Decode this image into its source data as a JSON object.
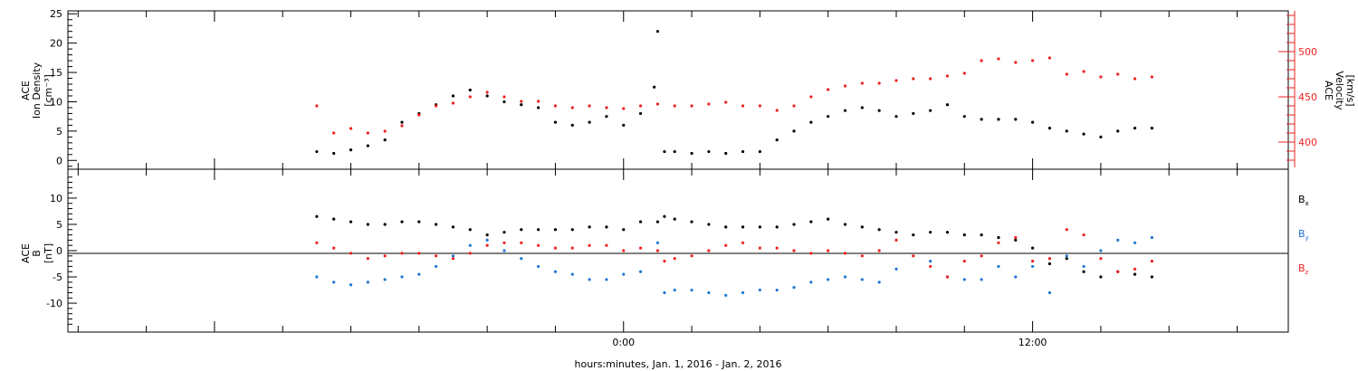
{
  "chart_data": [
    {
      "type": "scatter",
      "ylabel_left": [
        "ACE",
        "Ion Density",
        "[cm⁻³]"
      ],
      "ylabel_right": [
        "ACE",
        "Velocity",
        "[km/s]"
      ],
      "ylim_left": [
        -1.5,
        25.5
      ],
      "ylim_right": [
        370,
        545
      ],
      "yticks_left": [
        "0",
        "5",
        "10",
        "15",
        "20",
        "25"
      ],
      "yticks_right": [
        "400",
        "450",
        "500"
      ],
      "series": [
        {
          "axis": "left",
          "color": "#000000",
          "x": [
            -9.0,
            -8.5,
            -8.0,
            -7.5,
            -7.0,
            -6.5,
            -6.0,
            -5.5,
            -5.0,
            -4.5,
            -4.0,
            -3.5,
            -3.0,
            -2.5,
            -2.0,
            -1.5,
            -1.0,
            -0.5,
            0.0,
            0.5,
            0.9,
            1.0,
            1.2,
            1.5,
            2.0,
            2.5,
            3.0,
            3.5,
            4.0,
            4.5,
            5.0,
            5.5,
            6.0,
            6.5,
            7.0,
            7.5,
            8.0,
            8.5,
            9.0,
            9.5,
            10.0,
            10.5,
            11.0,
            11.5,
            12.0,
            12.5,
            13.0,
            13.5,
            14.0,
            14.5,
            15.0,
            15.5
          ],
          "y": [
            1.5,
            1.2,
            1.8,
            2.5,
            3.5,
            6.5,
            8.0,
            9.5,
            11.0,
            12.0,
            11.0,
            10.0,
            9.5,
            9.0,
            6.5,
            6.0,
            6.5,
            7.5,
            6.0,
            8.0,
            12.5,
            22.0,
            1.5,
            1.5,
            1.2,
            1.5,
            1.2,
            1.5,
            1.5,
            3.5,
            5.0,
            6.5,
            7.5,
            8.5,
            9.0,
            8.5,
            7.5,
            8.0,
            8.5,
            9.5,
            7.5,
            7.0,
            7.0,
            7.0,
            6.5,
            5.5,
            5.0,
            4.5,
            4.0,
            5.0,
            5.5,
            5.5
          ]
        },
        {
          "axis": "right",
          "color": "#ee2222",
          "x": [
            -9.0,
            -8.5,
            -8.0,
            -7.5,
            -7.0,
            -6.5,
            -6.0,
            -5.5,
            -5.0,
            -4.5,
            -4.0,
            -3.5,
            -3.0,
            -2.5,
            -2.0,
            -1.5,
            -1.0,
            -0.5,
            0.0,
            0.5,
            1.0,
            1.5,
            2.0,
            2.5,
            3.0,
            3.5,
            4.0,
            4.5,
            5.0,
            5.5,
            6.0,
            6.5,
            7.0,
            7.5,
            8.0,
            8.5,
            9.0,
            9.5,
            10.0,
            10.5,
            11.0,
            11.5,
            12.0,
            12.5,
            13.0,
            13.5,
            14.0,
            14.5,
            15.0,
            15.5
          ],
          "y": [
            440,
            410,
            415,
            410,
            412,
            418,
            430,
            440,
            443,
            450,
            455,
            450,
            445,
            445,
            440,
            438,
            440,
            438,
            437,
            440,
            442,
            440,
            440,
            442,
            444,
            440,
            440,
            435,
            440,
            450,
            458,
            462,
            465,
            465,
            468,
            470,
            470,
            473,
            476,
            490,
            492,
            488,
            490,
            493,
            475,
            478,
            472,
            475,
            470,
            472
          ]
        }
      ]
    },
    {
      "type": "scatter",
      "ylabel": [
        "ACE",
        "B",
        "[nT]"
      ],
      "ylim": [
        -15.5,
        15.5
      ],
      "yticks": [
        "-10",
        "-5",
        "0",
        "5",
        "10"
      ],
      "legend": [
        "Bx",
        "By",
        "Bz"
      ],
      "series": [
        {
          "name": "Bx",
          "color": "#000000",
          "x": [
            -9.0,
            -8.5,
            -8.0,
            -7.5,
            -7.0,
            -6.5,
            -6.0,
            -5.5,
            -5.0,
            -4.5,
            -4.0,
            -3.5,
            -3.0,
            -2.5,
            -2.0,
            -1.5,
            -1.0,
            -0.5,
            0.0,
            0.5,
            1.0,
            1.2,
            1.5,
            2.0,
            2.5,
            3.0,
            3.5,
            4.0,
            4.5,
            5.0,
            5.5,
            6.0,
            6.5,
            7.0,
            7.5,
            8.0,
            8.5,
            9.0,
            9.5,
            10.0,
            10.5,
            11.0,
            11.5,
            12.0,
            12.5,
            13.0,
            13.5,
            14.0,
            14.5,
            15.0,
            15.5
          ],
          "y": [
            6.5,
            6.0,
            5.5,
            5.0,
            5.0,
            5.5,
            5.5,
            5.0,
            4.5,
            4.0,
            3.0,
            3.5,
            4.0,
            4.0,
            4.0,
            4.0,
            4.5,
            4.5,
            4.0,
            5.5,
            5.5,
            6.5,
            6.0,
            5.5,
            5.0,
            4.5,
            4.5,
            4.5,
            4.5,
            5.0,
            5.5,
            6.0,
            5.0,
            4.5,
            4.0,
            3.5,
            3.0,
            3.5,
            3.5,
            3.0,
            3.0,
            2.5,
            2.0,
            0.5,
            -2.5,
            -1.5,
            -4.0,
            -5.0,
            -4.0,
            -4.5,
            -5.0
          ]
        },
        {
          "name": "By",
          "color": "#1f77d4",
          "x": [
            -9.0,
            -8.5,
            -8.0,
            -7.5,
            -7.0,
            -6.5,
            -6.0,
            -5.5,
            -5.0,
            -4.5,
            -4.0,
            -3.5,
            -3.0,
            -2.5,
            -2.0,
            -1.5,
            -1.0,
            -0.5,
            0.0,
            0.5,
            1.0,
            1.2,
            1.5,
            2.0,
            2.5,
            3.0,
            3.5,
            4.0,
            4.5,
            5.0,
            5.5,
            6.0,
            6.5,
            7.0,
            7.5,
            8.0,
            8.5,
            9.0,
            9.5,
            10.0,
            10.5,
            11.0,
            11.5,
            12.0,
            12.5,
            13.0,
            13.5,
            14.0,
            14.5,
            15.0,
            15.5
          ],
          "y": [
            -5.0,
            -6.0,
            -6.5,
            -6.0,
            -5.5,
            -5.0,
            -4.5,
            -3.0,
            -1.0,
            1.0,
            2.0,
            0.0,
            -1.5,
            -3.0,
            -4.0,
            -4.5,
            -5.5,
            -5.5,
            -4.5,
            -4.0,
            1.5,
            -8.0,
            -7.5,
            -7.5,
            -8.0,
            -8.5,
            -8.0,
            -7.5,
            -7.5,
            -7.0,
            -6.0,
            -5.5,
            -5.0,
            -5.5,
            -6.0,
            -3.5,
            -1.0,
            -2.0,
            -5.0,
            -5.5,
            -5.5,
            -3.0,
            -5.0,
            -3.0,
            -8.0,
            -1.0,
            -3.0,
            0.0,
            2.0,
            1.5,
            2.5
          ]
        },
        {
          "name": "Bz",
          "color": "#ee2222",
          "x": [
            -9.0,
            -8.5,
            -8.0,
            -7.5,
            -7.0,
            -6.5,
            -6.0,
            -5.5,
            -5.0,
            -4.5,
            -4.0,
            -3.5,
            -3.0,
            -2.5,
            -2.0,
            -1.5,
            -1.0,
            -0.5,
            0.0,
            0.5,
            1.0,
            1.2,
            1.5,
            2.0,
            2.5,
            3.0,
            3.5,
            4.0,
            4.5,
            5.0,
            5.5,
            6.0,
            6.5,
            7.0,
            7.5,
            8.0,
            8.5,
            9.0,
            9.5,
            10.0,
            10.5,
            11.0,
            11.5,
            12.0,
            12.5,
            13.0,
            13.5,
            14.0,
            14.5,
            15.0,
            15.5
          ],
          "y": [
            1.5,
            0.5,
            -0.5,
            -1.5,
            -1.0,
            -0.5,
            -0.5,
            -1.0,
            -1.5,
            -0.5,
            1.0,
            1.5,
            1.5,
            1.0,
            0.5,
            0.5,
            1.0,
            1.0,
            0.0,
            0.5,
            0.0,
            -2.0,
            -1.5,
            -1.0,
            0.0,
            1.0,
            1.5,
            0.5,
            0.5,
            0.0,
            -0.5,
            0.0,
            -0.5,
            -1.0,
            0.0,
            2.0,
            -1.0,
            -3.0,
            -5.0,
            -2.0,
            -1.0,
            1.5,
            2.5,
            -2.0,
            -1.5,
            4.0,
            3.0,
            -1.5,
            -4.0,
            -3.5,
            -2.0
          ]
        }
      ]
    }
  ],
  "x_axis": {
    "label": "hours:minutes, Jan.  1, 2016 - Jan.  2, 2016",
    "range_hours": [
      -16.3,
      19.5
    ],
    "tick_labels": [
      {
        "hour": 0,
        "label": "0:00"
      },
      {
        "hour": 12,
        "label": "12:00"
      }
    ]
  },
  "legend_labels": {
    "bx": {
      "main": "B",
      "sub": "x",
      "color": "#000000"
    },
    "by": {
      "main": "B",
      "sub": "y",
      "color": "#1f77d4"
    },
    "bz": {
      "main": "B",
      "sub": "z",
      "color": "#ee2222"
    }
  }
}
